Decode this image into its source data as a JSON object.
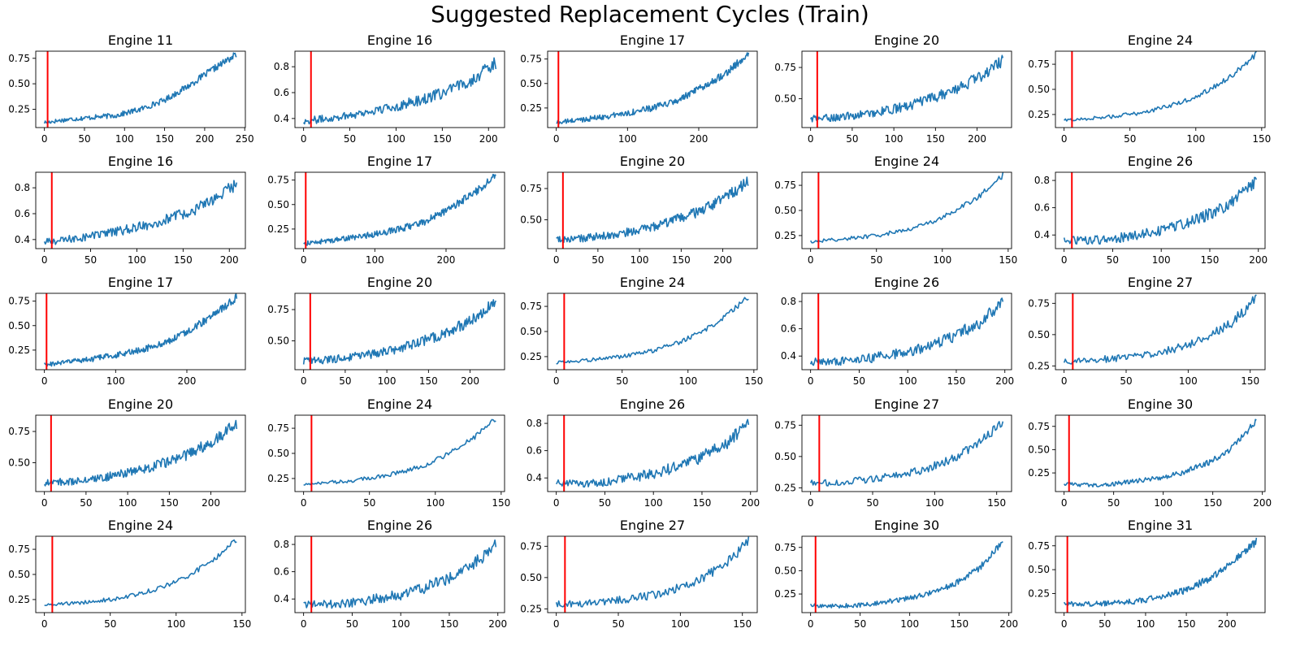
{
  "figure_title": "Suggested Replacement Cycles (Train)",
  "colors": {
    "series": "#1f77b4",
    "marker": "#ff0000",
    "axes": "#000000",
    "background": "#ffffff"
  },
  "chart_data": [
    {
      "type": "line",
      "title": "Engine 11",
      "xmax": 240,
      "ylim": [
        0.07,
        0.82
      ],
      "xticks": [
        0,
        50,
        100,
        150,
        200,
        250
      ],
      "yticks": [
        0.25,
        0.5,
        0.75
      ],
      "yprec": 2,
      "marker_x": 4,
      "curve": [
        0.12,
        0.15,
        0.17,
        0.19,
        0.25,
        0.34,
        0.48,
        0.64,
        0.79
      ],
      "noise": 0.025
    },
    {
      "type": "line",
      "title": "Engine 16",
      "xmax": 208,
      "ylim": [
        0.33,
        0.92
      ],
      "xticks": [
        0,
        50,
        100,
        150,
        200
      ],
      "yticks": [
        0.4,
        0.6,
        0.8
      ],
      "yprec": 1,
      "marker_x": 8,
      "curve": [
        0.38,
        0.4,
        0.43,
        0.46,
        0.5,
        0.55,
        0.61,
        0.7,
        0.83
      ],
      "noise": 0.035
    },
    {
      "type": "line",
      "title": "Engine 17",
      "xmax": 270,
      "ylim": [
        0.05,
        0.83
      ],
      "xticks": [
        0,
        100,
        200
      ],
      "yticks": [
        0.25,
        0.5,
        0.75
      ],
      "yprec": 2,
      "marker_x": 3,
      "curve": [
        0.1,
        0.13,
        0.16,
        0.2,
        0.25,
        0.32,
        0.45,
        0.6,
        0.79
      ],
      "noise": 0.03
    },
    {
      "type": "line",
      "title": "Engine 20",
      "xmax": 231,
      "ylim": [
        0.27,
        0.88
      ],
      "xticks": [
        0,
        50,
        100,
        150,
        200
      ],
      "yticks": [
        0.5,
        0.75
      ],
      "yprec": 2,
      "marker_x": 8,
      "curve": [
        0.34,
        0.35,
        0.37,
        0.4,
        0.44,
        0.5,
        0.57,
        0.67,
        0.81
      ],
      "noise": 0.035
    },
    {
      "type": "line",
      "title": "Engine 24",
      "xmax": 146,
      "ylim": [
        0.12,
        0.88
      ],
      "xticks": [
        0,
        50,
        100,
        150
      ],
      "yticks": [
        0.25,
        0.5,
        0.75
      ],
      "yprec": 2,
      "marker_x": 6,
      "curve": [
        0.19,
        0.21,
        0.23,
        0.26,
        0.31,
        0.38,
        0.49,
        0.64,
        0.85
      ],
      "noise": 0.02
    },
    {
      "type": "line",
      "title": "Engine 16",
      "xmax": 208,
      "ylim": [
        0.33,
        0.92
      ],
      "xticks": [
        0,
        50,
        100,
        150,
        200
      ],
      "yticks": [
        0.4,
        0.6,
        0.8
      ],
      "yprec": 1,
      "marker_x": 8,
      "curve": [
        0.38,
        0.4,
        0.43,
        0.46,
        0.5,
        0.55,
        0.61,
        0.7,
        0.83
      ],
      "noise": 0.035
    },
    {
      "type": "line",
      "title": "Engine 17",
      "xmax": 270,
      "ylim": [
        0.05,
        0.83
      ],
      "xticks": [
        0,
        100,
        200
      ],
      "yticks": [
        0.25,
        0.5,
        0.75
      ],
      "yprec": 2,
      "marker_x": 3,
      "curve": [
        0.1,
        0.13,
        0.16,
        0.2,
        0.25,
        0.32,
        0.45,
        0.6,
        0.79
      ],
      "noise": 0.03
    },
    {
      "type": "line",
      "title": "Engine 20",
      "xmax": 231,
      "ylim": [
        0.27,
        0.88
      ],
      "xticks": [
        0,
        50,
        100,
        150,
        200
      ],
      "yticks": [
        0.5,
        0.75
      ],
      "yprec": 2,
      "marker_x": 8,
      "curve": [
        0.34,
        0.35,
        0.37,
        0.4,
        0.44,
        0.5,
        0.57,
        0.67,
        0.81
      ],
      "noise": 0.035
    },
    {
      "type": "line",
      "title": "Engine 24",
      "xmax": 146,
      "ylim": [
        0.12,
        0.88
      ],
      "xticks": [
        0,
        50,
        100,
        150
      ],
      "yticks": [
        0.25,
        0.5,
        0.75
      ],
      "yprec": 2,
      "marker_x": 6,
      "curve": [
        0.19,
        0.21,
        0.23,
        0.26,
        0.31,
        0.38,
        0.49,
        0.64,
        0.85
      ],
      "noise": 0.02
    },
    {
      "type": "line",
      "title": "Engine 26",
      "xmax": 198,
      "ylim": [
        0.3,
        0.86
      ],
      "xticks": [
        0,
        50,
        100,
        150,
        200
      ],
      "yticks": [
        0.4,
        0.6,
        0.8
      ],
      "yprec": 1,
      "marker_x": 8,
      "curve": [
        0.36,
        0.36,
        0.37,
        0.4,
        0.43,
        0.48,
        0.55,
        0.64,
        0.8
      ],
      "noise": 0.035
    },
    {
      "type": "line",
      "title": "Engine 17",
      "xmax": 270,
      "ylim": [
        0.05,
        0.83
      ],
      "xticks": [
        0,
        100,
        200
      ],
      "yticks": [
        0.25,
        0.5,
        0.75
      ],
      "yprec": 2,
      "marker_x": 3,
      "curve": [
        0.1,
        0.13,
        0.16,
        0.2,
        0.25,
        0.32,
        0.45,
        0.6,
        0.79
      ],
      "noise": 0.03
    },
    {
      "type": "line",
      "title": "Engine 20",
      "xmax": 231,
      "ylim": [
        0.27,
        0.88
      ],
      "xticks": [
        0,
        50,
        100,
        150,
        200
      ],
      "yticks": [
        0.5,
        0.75
      ],
      "yprec": 2,
      "marker_x": 8,
      "curve": [
        0.34,
        0.35,
        0.37,
        0.4,
        0.44,
        0.5,
        0.57,
        0.67,
        0.81
      ],
      "noise": 0.035
    },
    {
      "type": "line",
      "title": "Engine 24",
      "xmax": 146,
      "ylim": [
        0.12,
        0.88
      ],
      "xticks": [
        0,
        50,
        100,
        150
      ],
      "yticks": [
        0.25,
        0.5,
        0.75
      ],
      "yprec": 2,
      "marker_x": 6,
      "curve": [
        0.19,
        0.21,
        0.23,
        0.26,
        0.31,
        0.38,
        0.49,
        0.64,
        0.85
      ],
      "noise": 0.02
    },
    {
      "type": "line",
      "title": "Engine 26",
      "xmax": 198,
      "ylim": [
        0.3,
        0.86
      ],
      "xticks": [
        0,
        50,
        100,
        150,
        200
      ],
      "yticks": [
        0.4,
        0.6,
        0.8
      ],
      "yprec": 1,
      "marker_x": 8,
      "curve": [
        0.36,
        0.36,
        0.37,
        0.4,
        0.43,
        0.48,
        0.55,
        0.64,
        0.8
      ],
      "noise": 0.035
    },
    {
      "type": "line",
      "title": "Engine 27",
      "xmax": 155,
      "ylim": [
        0.22,
        0.83
      ],
      "xticks": [
        0,
        50,
        100,
        150
      ],
      "yticks": [
        0.25,
        0.5,
        0.75
      ],
      "yprec": 2,
      "marker_x": 7,
      "curve": [
        0.29,
        0.29,
        0.31,
        0.33,
        0.36,
        0.41,
        0.49,
        0.6,
        0.79
      ],
      "noise": 0.03
    },
    {
      "type": "line",
      "title": "Engine 20",
      "xmax": 231,
      "ylim": [
        0.27,
        0.88
      ],
      "xticks": [
        0,
        50,
        100,
        150,
        200
      ],
      "yticks": [
        0.5,
        0.75
      ],
      "yprec": 2,
      "marker_x": 8,
      "curve": [
        0.34,
        0.35,
        0.37,
        0.4,
        0.44,
        0.5,
        0.57,
        0.67,
        0.81
      ],
      "noise": 0.035
    },
    {
      "type": "line",
      "title": "Engine 24",
      "xmax": 146,
      "ylim": [
        0.12,
        0.88
      ],
      "xticks": [
        0,
        50,
        100,
        150
      ],
      "yticks": [
        0.25,
        0.5,
        0.75
      ],
      "yprec": 2,
      "marker_x": 6,
      "curve": [
        0.19,
        0.21,
        0.23,
        0.26,
        0.31,
        0.38,
        0.49,
        0.64,
        0.85
      ],
      "noise": 0.02
    },
    {
      "type": "line",
      "title": "Engine 26",
      "xmax": 198,
      "ylim": [
        0.3,
        0.86
      ],
      "xticks": [
        0,
        50,
        100,
        150,
        200
      ],
      "yticks": [
        0.4,
        0.6,
        0.8
      ],
      "yprec": 1,
      "marker_x": 8,
      "curve": [
        0.36,
        0.36,
        0.37,
        0.4,
        0.43,
        0.48,
        0.55,
        0.64,
        0.8
      ],
      "noise": 0.035
    },
    {
      "type": "line",
      "title": "Engine 27",
      "xmax": 155,
      "ylim": [
        0.22,
        0.83
      ],
      "xticks": [
        0,
        50,
        100,
        150
      ],
      "yticks": [
        0.25,
        0.5,
        0.75
      ],
      "yprec": 2,
      "marker_x": 7,
      "curve": [
        0.29,
        0.29,
        0.31,
        0.33,
        0.36,
        0.41,
        0.49,
        0.6,
        0.79
      ],
      "noise": 0.03
    },
    {
      "type": "line",
      "title": "Engine 30",
      "xmax": 194,
      "ylim": [
        0.05,
        0.87
      ],
      "xticks": [
        0,
        50,
        100,
        150,
        200
      ],
      "yticks": [
        0.25,
        0.5,
        0.75
      ],
      "yprec": 2,
      "marker_x": 5,
      "curve": [
        0.13,
        0.12,
        0.13,
        0.16,
        0.2,
        0.26,
        0.36,
        0.52,
        0.81
      ],
      "noise": 0.025
    },
    {
      "type": "line",
      "title": "Engine 24",
      "xmax": 146,
      "ylim": [
        0.12,
        0.88
      ],
      "xticks": [
        0,
        50,
        100,
        150
      ],
      "yticks": [
        0.25,
        0.5,
        0.75
      ],
      "yprec": 2,
      "marker_x": 6,
      "curve": [
        0.19,
        0.21,
        0.23,
        0.26,
        0.31,
        0.38,
        0.49,
        0.64,
        0.85
      ],
      "noise": 0.02
    },
    {
      "type": "line",
      "title": "Engine 26",
      "xmax": 198,
      "ylim": [
        0.3,
        0.86
      ],
      "xticks": [
        0,
        50,
        100,
        150,
        200
      ],
      "yticks": [
        0.4,
        0.6,
        0.8
      ],
      "yprec": 1,
      "marker_x": 8,
      "curve": [
        0.36,
        0.36,
        0.37,
        0.4,
        0.43,
        0.48,
        0.55,
        0.64,
        0.8
      ],
      "noise": 0.035
    },
    {
      "type": "line",
      "title": "Engine 27",
      "xmax": 155,
      "ylim": [
        0.22,
        0.83
      ],
      "xticks": [
        0,
        50,
        100,
        150
      ],
      "yticks": [
        0.25,
        0.5,
        0.75
      ],
      "yprec": 2,
      "marker_x": 7,
      "curve": [
        0.29,
        0.29,
        0.31,
        0.33,
        0.36,
        0.41,
        0.49,
        0.6,
        0.79
      ],
      "noise": 0.03
    },
    {
      "type": "line",
      "title": "Engine 30",
      "xmax": 194,
      "ylim": [
        0.05,
        0.87
      ],
      "xticks": [
        0,
        50,
        100,
        150,
        200
      ],
      "yticks": [
        0.25,
        0.5,
        0.75
      ],
      "yprec": 2,
      "marker_x": 5,
      "curve": [
        0.13,
        0.12,
        0.13,
        0.16,
        0.2,
        0.26,
        0.36,
        0.52,
        0.81
      ],
      "noise": 0.025
    },
    {
      "type": "line",
      "title": "Engine 31",
      "xmax": 236,
      "ylim": [
        0.05,
        0.85
      ],
      "xticks": [
        0,
        50,
        100,
        150,
        200
      ],
      "yticks": [
        0.25,
        0.5,
        0.75
      ],
      "yprec": 2,
      "marker_x": 4,
      "curve": [
        0.14,
        0.14,
        0.15,
        0.17,
        0.21,
        0.28,
        0.4,
        0.57,
        0.8
      ],
      "noise": 0.03
    }
  ]
}
